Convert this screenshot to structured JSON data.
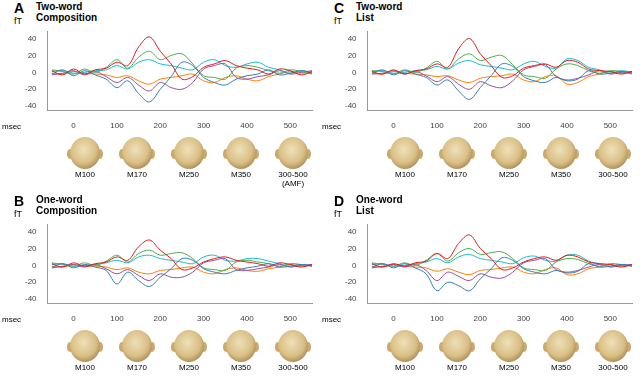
{
  "chart_data": [
    {
      "type": "line",
      "panel": "A",
      "title": "Two-word\nComposition",
      "x_label": "msec",
      "y_label": "fT",
      "xlim": [
        -60,
        550
      ],
      "xticks": [
        0,
        100,
        200,
        300,
        400,
        500
      ],
      "ylim": [
        -45,
        48
      ],
      "yticks": [
        -40,
        -20,
        0,
        20,
        40
      ],
      "grid": false,
      "maps": [
        "M100",
        "M170",
        "M250",
        "M350",
        "300-500"
      ],
      "map_note": "(AMF)",
      "x": [
        -50,
        -25,
        0,
        25,
        50,
        75,
        100,
        125,
        150,
        175,
        200,
        225,
        250,
        275,
        300,
        325,
        350,
        375,
        400,
        425,
        450,
        475,
        500,
        525,
        550
      ],
      "series": [
        {
          "color": "#e41a1c",
          "values": [
            2,
            -3,
            4,
            -2,
            3,
            5,
            12,
            8,
            30,
            42,
            25,
            10,
            -8,
            -5,
            6,
            10,
            14,
            8,
            5,
            3,
            -2,
            4,
            2,
            -3,
            1
          ]
        },
        {
          "color": "#377eb8",
          "values": [
            -2,
            3,
            -4,
            2,
            -3,
            -8,
            -18,
            -10,
            -25,
            -35,
            -20,
            -5,
            12,
            8,
            -6,
            -12,
            -15,
            -8,
            -4,
            -2,
            3,
            -3,
            -1,
            2,
            -1
          ]
        },
        {
          "color": "#4daf4a",
          "values": [
            3,
            1,
            -2,
            4,
            0,
            6,
            15,
            5,
            18,
            25,
            15,
            20,
            22,
            10,
            -4,
            -6,
            -8,
            5,
            8,
            6,
            2,
            -1,
            3,
            1,
            -2
          ]
        },
        {
          "color": "#984ea3",
          "values": [
            -3,
            -1,
            2,
            -3,
            1,
            -5,
            -12,
            -6,
            -15,
            -22,
            -12,
            -18,
            -20,
            -12,
            4,
            8,
            10,
            -6,
            -8,
            -5,
            -3,
            2,
            -2,
            0,
            2
          ]
        },
        {
          "color": "#17becf",
          "values": [
            1,
            2,
            -1,
            0,
            2,
            3,
            8,
            4,
            12,
            15,
            10,
            8,
            5,
            3,
            12,
            15,
            8,
            6,
            10,
            12,
            6,
            3,
            -1,
            2,
            0
          ]
        },
        {
          "color": "#ff7f00",
          "values": [
            -1,
            -2,
            1,
            -1,
            -2,
            -3,
            -6,
            -4,
            -10,
            -14,
            -8,
            -6,
            -4,
            -2,
            -10,
            -12,
            -6,
            -4,
            -8,
            -10,
            -5,
            -2,
            1,
            -1,
            0
          ]
        }
      ]
    },
    {
      "type": "line",
      "panel": "B",
      "title": "One-word\nComposition",
      "x_label": "msec",
      "y_label": "fT",
      "xlim": [
        -60,
        550
      ],
      "xticks": [
        0,
        100,
        200,
        300,
        400,
        500
      ],
      "ylim": [
        -45,
        48
      ],
      "yticks": [
        -40,
        -20,
        0,
        20,
        40
      ],
      "grid": false,
      "maps": [
        "M100",
        "M170",
        "M250",
        "M350",
        "300-500"
      ],
      "x": [
        -50,
        -25,
        0,
        25,
        50,
        75,
        100,
        125,
        150,
        175,
        200,
        225,
        250,
        275,
        300,
        325,
        350,
        375,
        400,
        425,
        450,
        475,
        500,
        525,
        550
      ],
      "series": [
        {
          "color": "#e41a1c",
          "values": [
            2,
            -2,
            3,
            -1,
            2,
            4,
            10,
            6,
            22,
            30,
            18,
            8,
            -5,
            -3,
            4,
            8,
            10,
            6,
            4,
            2,
            -1,
            3,
            1,
            -2,
            1
          ]
        },
        {
          "color": "#377eb8",
          "values": [
            -2,
            2,
            -3,
            1,
            -2,
            -6,
            -22,
            -8,
            -18,
            -25,
            -14,
            -4,
            8,
            6,
            -4,
            -8,
            -10,
            -6,
            -3,
            -1,
            2,
            -2,
            -1,
            1,
            -1
          ]
        },
        {
          "color": "#4daf4a",
          "values": [
            3,
            1,
            -1,
            3,
            0,
            5,
            12,
            4,
            14,
            18,
            12,
            14,
            15,
            8,
            -3,
            -5,
            -6,
            4,
            6,
            4,
            2,
            -1,
            2,
            1,
            -1
          ]
        },
        {
          "color": "#984ea3",
          "values": [
            -3,
            -1,
            1,
            -2,
            1,
            -4,
            -10,
            -5,
            -12,
            -18,
            -10,
            -14,
            -14,
            -8,
            3,
            6,
            8,
            -5,
            -6,
            -4,
            -2,
            1,
            -2,
            0,
            1
          ]
        },
        {
          "color": "#17becf",
          "values": [
            1,
            2,
            -1,
            0,
            1,
            3,
            6,
            3,
            10,
            12,
            8,
            6,
            4,
            2,
            10,
            12,
            6,
            5,
            8,
            8,
            5,
            2,
            -1,
            1,
            0
          ]
        },
        {
          "color": "#ff7f00",
          "values": [
            -1,
            -2,
            1,
            -1,
            -1,
            -2,
            -5,
            -3,
            -8,
            -10,
            -6,
            -5,
            -3,
            -2,
            -8,
            -10,
            -5,
            -3,
            -6,
            -7,
            -4,
            -2,
            1,
            -1,
            0
          ]
        }
      ]
    },
    {
      "type": "line",
      "panel": "C",
      "title": "Two-word\nList",
      "x_label": "msec",
      "y_label": "fT",
      "xlim": [
        -60,
        550
      ],
      "xticks": [
        0,
        100,
        200,
        300,
        400,
        500
      ],
      "ylim": [
        -45,
        48
      ],
      "yticks": [
        -40,
        -20,
        0,
        20,
        40
      ],
      "grid": false,
      "maps": [
        "M100",
        "M170",
        "M250",
        "M350",
        "300-500"
      ],
      "x": [
        -50,
        -25,
        0,
        25,
        50,
        75,
        100,
        125,
        150,
        175,
        200,
        225,
        250,
        275,
        300,
        325,
        350,
        375,
        400,
        425,
        450,
        475,
        500,
        525,
        550
      ],
      "series": [
        {
          "color": "#e41a1c",
          "values": [
            1,
            -2,
            3,
            -2,
            2,
            4,
            10,
            6,
            28,
            40,
            22,
            8,
            -6,
            -4,
            5,
            8,
            10,
            6,
            14,
            12,
            4,
            2,
            1,
            -2,
            1
          ]
        },
        {
          "color": "#377eb8",
          "values": [
            -1,
            3,
            -3,
            2,
            -2,
            -6,
            -15,
            -9,
            -22,
            -32,
            -18,
            -4,
            10,
            7,
            -5,
            -10,
            -12,
            -6,
            -10,
            -8,
            2,
            -2,
            -1,
            1,
            -1
          ]
        },
        {
          "color": "#4daf4a",
          "values": [
            2,
            1,
            -2,
            3,
            0,
            5,
            13,
            4,
            16,
            22,
            14,
            18,
            20,
            9,
            -3,
            -5,
            -7,
            4,
            10,
            8,
            2,
            -1,
            2,
            1,
            -2
          ]
        },
        {
          "color": "#984ea3",
          "values": [
            -2,
            -1,
            2,
            -2,
            1,
            -4,
            -11,
            -5,
            -14,
            -20,
            -11,
            -16,
            -18,
            -10,
            3,
            7,
            9,
            -5,
            -9,
            -7,
            -3,
            2,
            -2,
            0,
            1
          ]
        },
        {
          "color": "#17becf",
          "values": [
            1,
            2,
            -1,
            0,
            2,
            3,
            7,
            4,
            11,
            14,
            9,
            7,
            5,
            3,
            10,
            13,
            7,
            5,
            16,
            14,
            6,
            3,
            -1,
            2,
            0
          ]
        },
        {
          "color": "#ff7f00",
          "values": [
            -1,
            -2,
            1,
            -1,
            -2,
            -3,
            -5,
            -4,
            -9,
            -12,
            -7,
            -5,
            -4,
            -2,
            -9,
            -11,
            -5,
            -4,
            -14,
            -12,
            -5,
            -2,
            1,
            -1,
            0
          ]
        }
      ]
    },
    {
      "type": "line",
      "panel": "D",
      "title": "One-word\nList",
      "x_label": "msec",
      "y_label": "fT",
      "xlim": [
        -60,
        550
      ],
      "xticks": [
        0,
        100,
        200,
        300,
        400,
        500
      ],
      "ylim": [
        -45,
        48
      ],
      "yticks": [
        -40,
        -20,
        0,
        20,
        40
      ],
      "grid": false,
      "maps": [
        "M100",
        "M170",
        "M250",
        "M350",
        "300-500"
      ],
      "x": [
        -50,
        -25,
        0,
        25,
        50,
        75,
        100,
        125,
        150,
        175,
        200,
        225,
        250,
        275,
        300,
        325,
        350,
        375,
        400,
        425,
        450,
        475,
        500,
        525,
        550
      ],
      "series": [
        {
          "color": "#e41a1c",
          "values": [
            2,
            -2,
            2,
            -1,
            3,
            5,
            14,
            8,
            26,
            36,
            20,
            8,
            -5,
            -3,
            4,
            8,
            10,
            6,
            12,
            10,
            4,
            2,
            1,
            -2,
            1
          ]
        },
        {
          "color": "#377eb8",
          "values": [
            -2,
            2,
            -3,
            2,
            -3,
            -10,
            -30,
            -20,
            -24,
            -30,
            -16,
            -4,
            9,
            6,
            -4,
            -8,
            -10,
            -6,
            -9,
            -7,
            2,
            -2,
            -1,
            1,
            -1
          ]
        },
        {
          "color": "#4daf4a",
          "values": [
            3,
            1,
            -1,
            3,
            0,
            6,
            14,
            5,
            15,
            20,
            13,
            15,
            16,
            8,
            -3,
            -5,
            -6,
            4,
            8,
            7,
            2,
            -1,
            2,
            1,
            -1
          ]
        },
        {
          "color": "#984ea3",
          "values": [
            -3,
            -1,
            1,
            -2,
            1,
            -6,
            -18,
            -8,
            -13,
            -18,
            -10,
            -14,
            -15,
            -8,
            3,
            6,
            8,
            -5,
            -8,
            -6,
            -2,
            1,
            -2,
            0,
            1
          ]
        },
        {
          "color": "#17becf",
          "values": [
            1,
            2,
            -1,
            0,
            2,
            4,
            8,
            3,
            10,
            13,
            8,
            6,
            4,
            2,
            9,
            11,
            6,
            5,
            12,
            12,
            5,
            2,
            -1,
            1,
            0
          ]
        },
        {
          "color": "#ff7f00",
          "values": [
            -1,
            -2,
            1,
            -1,
            -2,
            -3,
            -7,
            -4,
            -8,
            -11,
            -6,
            -5,
            -3,
            -2,
            -8,
            -10,
            -5,
            -3,
            -11,
            -10,
            -4,
            -2,
            1,
            -1,
            0
          ]
        }
      ]
    }
  ]
}
